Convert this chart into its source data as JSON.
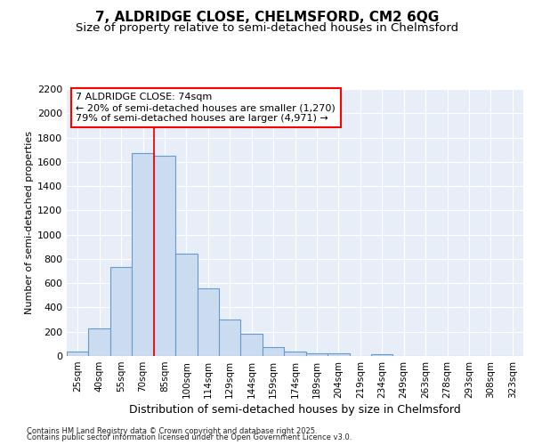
{
  "title1": "7, ALDRIDGE CLOSE, CHELMSFORD, CM2 6QG",
  "title2": "Size of property relative to semi-detached houses in Chelmsford",
  "xlabel": "Distribution of semi-detached houses by size in Chelmsford",
  "ylabel": "Number of semi-detached properties",
  "categories": [
    "25sqm",
    "40sqm",
    "55sqm",
    "70sqm",
    "85sqm",
    "100sqm",
    "114sqm",
    "129sqm",
    "144sqm",
    "159sqm",
    "174sqm",
    "189sqm",
    "204sqm",
    "219sqm",
    "234sqm",
    "249sqm",
    "263sqm",
    "278sqm",
    "293sqm",
    "308sqm",
    "323sqm"
  ],
  "values": [
    40,
    225,
    730,
    1670,
    1650,
    845,
    560,
    300,
    185,
    70,
    35,
    25,
    20,
    0,
    15,
    0,
    0,
    0,
    0,
    0,
    0
  ],
  "bar_color": "#ccdcf0",
  "bar_edge_color": "#6699cc",
  "red_line_x": 3.5,
  "annotation_line1": "7 ALDRIDGE CLOSE: 74sqm",
  "annotation_line2": "← 20% of semi-detached houses are smaller (1,270)",
  "annotation_line3": "79% of semi-detached houses are larger (4,971) →",
  "ylim": [
    0,
    2200
  ],
  "yticks": [
    0,
    200,
    400,
    600,
    800,
    1000,
    1200,
    1400,
    1600,
    1800,
    2000,
    2200
  ],
  "background_color": "#e8eef8",
  "grid_color": "#ffffff",
  "footer1": "Contains HM Land Registry data © Crown copyright and database right 2025.",
  "footer2": "Contains public sector information licensed under the Open Government Licence v3.0.",
  "title1_fontsize": 11,
  "title2_fontsize": 9.5,
  "xlabel_fontsize": 9,
  "ylabel_fontsize": 8,
  "tick_fontsize": 7.5,
  "ytick_fontsize": 8,
  "annotation_fontsize": 8,
  "footer_fontsize": 6,
  "bar_width": 1.0
}
